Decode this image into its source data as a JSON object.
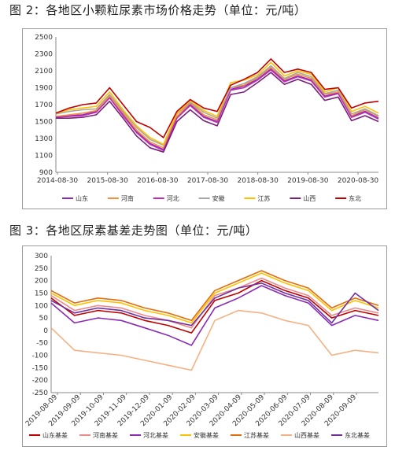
{
  "figures": [
    {
      "title": "图 2：各地区小颗粒尿素市场价格走势（单位：元/吨）"
    },
    {
      "title": "图 3：各地区尿素基差走势图（单位：元/吨）"
    }
  ],
  "chart_data": [
    {
      "type": "line",
      "title": "图 2：各地区小颗粒尿素市场价格走势（单位：元/吨）",
      "xlabel": "",
      "ylabel": "",
      "ylim": [
        900,
        2500
      ],
      "y_ticks": [
        900,
        1100,
        1300,
        1500,
        1700,
        1900,
        2100,
        2300,
        2500
      ],
      "x_ticks": [
        "2014-08-30",
        "2015-08-30",
        "2016-08-30",
        "2017-08-30",
        "2018-08-30",
        "2019-08-30",
        "2020-08-30"
      ],
      "x": [
        "2014-09",
        "2014-12",
        "2015-03",
        "2015-06",
        "2015-09",
        "2015-12",
        "2016-03",
        "2016-06",
        "2016-09",
        "2016-12",
        "2017-03",
        "2017-06",
        "2017-09",
        "2017-12",
        "2018-03",
        "2018-06",
        "2018-09",
        "2018-12",
        "2019-03",
        "2019-06",
        "2019-09",
        "2019-12",
        "2020-03",
        "2020-06",
        "2020-09"
      ],
      "grid": false,
      "legend_position": "bottom",
      "series": [
        {
          "name": "山东",
          "color": "#8B2BB5",
          "values": [
            1560,
            1570,
            1580,
            1620,
            1800,
            1580,
            1380,
            1240,
            1170,
            1550,
            1700,
            1560,
            1500,
            1880,
            1920,
            2000,
            2120,
            1980,
            2040,
            1990,
            1800,
            1840,
            1560,
            1620,
            1540
          ]
        },
        {
          "name": "河南",
          "color": "#F2913A",
          "values": [
            1560,
            1580,
            1600,
            1630,
            1800,
            1600,
            1400,
            1260,
            1190,
            1560,
            1720,
            1580,
            1520,
            1900,
            1930,
            2020,
            2140,
            2000,
            2060,
            2010,
            1820,
            1850,
            1570,
            1640,
            1560
          ]
        },
        {
          "name": "河北",
          "color": "#BE2DB8",
          "values": [
            1550,
            1560,
            1570,
            1610,
            1780,
            1570,
            1370,
            1230,
            1160,
            1540,
            1690,
            1550,
            1490,
            1870,
            1900,
            1990,
            2110,
            1970,
            2030,
            1980,
            1790,
            1830,
            1550,
            1610,
            1530
          ]
        },
        {
          "name": "安徽",
          "color": "#A6A6A6",
          "values": [
            1590,
            1620,
            1640,
            1650,
            1820,
            1620,
            1430,
            1290,
            1220,
            1590,
            1730,
            1610,
            1540,
            1900,
            1950,
            2030,
            2160,
            2010,
            2080,
            2030,
            1830,
            1870,
            1590,
            1650,
            1570
          ]
        },
        {
          "name": "江苏",
          "color": "#FFC000",
          "values": [
            1600,
            1640,
            1660,
            1680,
            1850,
            1640,
            1450,
            1310,
            1230,
            1600,
            1750,
            1630,
            1560,
            1960,
            1990,
            2050,
            2200,
            2040,
            2100,
            2060,
            1850,
            1900,
            1620,
            1680,
            1600
          ]
        },
        {
          "name": "山西",
          "color": "#7A1F7A",
          "values": [
            1540,
            1540,
            1550,
            1580,
            1740,
            1540,
            1330,
            1190,
            1140,
            1500,
            1640,
            1510,
            1450,
            1820,
            1850,
            1960,
            2080,
            1940,
            2000,
            1940,
            1750,
            1790,
            1510,
            1570,
            1500
          ]
        },
        {
          "name": "东北",
          "color": "#C00000",
          "values": [
            1600,
            1660,
            1700,
            1720,
            1900,
            1700,
            1500,
            1430,
            1310,
            1620,
            1760,
            1660,
            1620,
            1930,
            2000,
            2080,
            2240,
            2080,
            2120,
            2080,
            1880,
            1900,
            1660,
            1720,
            1740
          ]
        }
      ]
    },
    {
      "type": "line",
      "title": "图 3：各地区尿素基差走势图（单位：元/吨）",
      "xlabel": "",
      "ylabel": "",
      "ylim": [
        -250,
        300
      ],
      "y_ticks": [
        -250,
        -200,
        -150,
        -100,
        -50,
        0,
        50,
        100,
        150,
        200,
        250,
        300
      ],
      "x_ticks": [
        "2019-08-09",
        "2019-09-09",
        "2019-10-09",
        "2019-11-09",
        "2019-12-09",
        "2020-01-09",
        "2020-02-09",
        "2020-03-09",
        "2020-04-09",
        "2020-05-09",
        "2020-06-09",
        "2020-07-09",
        "2020-08-09",
        "2020-09-09"
      ],
      "x": [
        "2019-08-09",
        "2019-09-09",
        "2019-10-09",
        "2019-11-09",
        "2019-12-09",
        "2020-01-09",
        "2020-02-09",
        "2020-03-09",
        "2020-04-09",
        "2020-05-09",
        "2020-06-09",
        "2020-07-09",
        "2020-08-09",
        "2020-09-09",
        "2020-09-25"
      ],
      "grid": false,
      "legend_position": "bottom",
      "series": [
        {
          "name": "山东基差",
          "color": "#C00000",
          "values": [
            130,
            60,
            80,
            70,
            40,
            20,
            -10,
            120,
            150,
            200,
            160,
            130,
            50,
            80,
            60
          ]
        },
        {
          "name": "河南基差",
          "color": "#ED8A8A",
          "values": [
            140,
            80,
            100,
            90,
            60,
            40,
            10,
            140,
            170,
            210,
            170,
            140,
            60,
            90,
            70
          ]
        },
        {
          "name": "河北基差",
          "color": "#8B2BB5",
          "values": [
            110,
            30,
            50,
            40,
            10,
            -20,
            -60,
            90,
            130,
            180,
            140,
            110,
            20,
            60,
            40
          ]
        },
        {
          "name": "安徽基差",
          "color": "#FFC000",
          "values": [
            150,
            100,
            120,
            110,
            80,
            60,
            30,
            150,
            190,
            230,
            190,
            160,
            80,
            120,
            90
          ]
        },
        {
          "name": "江苏基差",
          "color": "#E46C0A",
          "values": [
            160,
            110,
            130,
            120,
            90,
            70,
            40,
            160,
            200,
            240,
            200,
            170,
            90,
            130,
            100
          ]
        },
        {
          "name": "山西基差",
          "color": "#F4B183",
          "values": [
            10,
            -80,
            -90,
            -100,
            -120,
            -140,
            -160,
            40,
            80,
            70,
            40,
            20,
            -100,
            -80,
            -90
          ]
        },
        {
          "name": "东北基差",
          "color": "#7030A0",
          "values": [
            120,
            70,
            90,
            80,
            50,
            40,
            20,
            130,
            170,
            190,
            150,
            120,
            30,
            150,
            80
          ]
        }
      ]
    }
  ]
}
